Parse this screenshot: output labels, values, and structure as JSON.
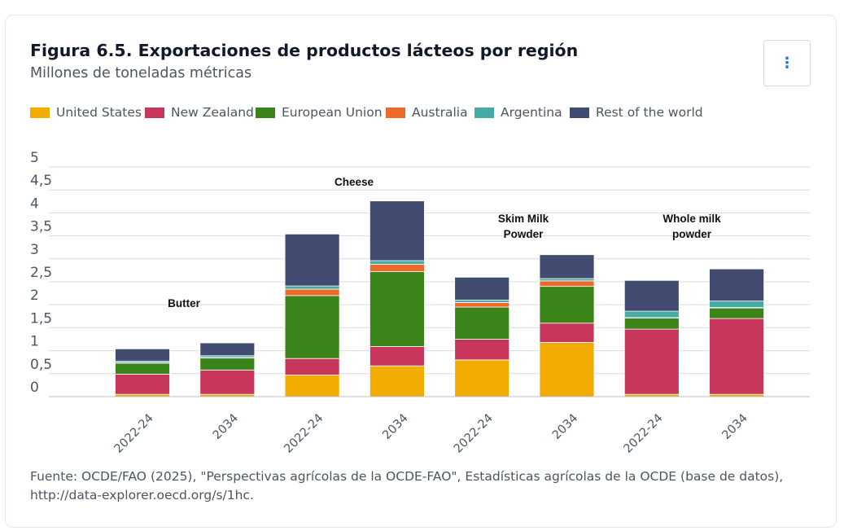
{
  "header": {
    "title": "Figura 6.5. Exportaciones de productos lácteos por región",
    "subtitle": "Millones de toneladas métricas",
    "menu_icon": "vertical-ellipsis-icon"
  },
  "legend": [
    {
      "name": "United States",
      "color": "#f2ac00"
    },
    {
      "name": "New Zealand",
      "color": "#c8365c"
    },
    {
      "name": "European Union",
      "color": "#3a8419"
    },
    {
      "name": "Australia",
      "color": "#ee6a28"
    },
    {
      "name": "Argentina",
      "color": "#44aba5"
    },
    {
      "name": "Rest of the world",
      "color": "#424b70"
    }
  ],
  "chart_data": {
    "type": "bar",
    "stacked": true,
    "y_tick_labels": [
      "0",
      "0,5",
      "1",
      "1,5",
      "2",
      "2,5",
      "3",
      "3,5",
      "4",
      "4,5",
      "5"
    ],
    "ylim": [
      0,
      5
    ],
    "grid": true,
    "legend_position": "top",
    "group_labels": [
      "Butter",
      "Cheese",
      "Skim Milk Powder",
      "Whole milk powder"
    ],
    "categories": [
      "2022-24",
      "2034",
      "2022-24",
      "2034",
      "2022-24",
      "2034",
      "2022-24",
      "2034"
    ],
    "series": [
      {
        "name": "United States",
        "color": "#f2ac00",
        "values": [
          0.05,
          0.05,
          0.47,
          0.67,
          0.8,
          1.18,
          0.05,
          0.05
        ]
      },
      {
        "name": "New Zealand",
        "color": "#c8365c",
        "values": [
          0.44,
          0.53,
          0.36,
          0.42,
          0.45,
          0.42,
          1.42,
          1.65
        ]
      },
      {
        "name": "European Union",
        "color": "#3a8419",
        "values": [
          0.24,
          0.26,
          1.37,
          1.63,
          0.7,
          0.8,
          0.24,
          0.23
        ]
      },
      {
        "name": "Australia",
        "color": "#ee6a28",
        "values": [
          0.01,
          0.01,
          0.14,
          0.16,
          0.1,
          0.12,
          0.01,
          0.01
        ]
      },
      {
        "name": "Argentina",
        "color": "#44aba5",
        "values": [
          0.03,
          0.04,
          0.07,
          0.08,
          0.05,
          0.05,
          0.14,
          0.14
        ]
      },
      {
        "name": "Rest of the world",
        "color": "#424b70",
        "values": [
          0.27,
          0.28,
          1.13,
          1.3,
          0.5,
          0.52,
          0.67,
          0.7
        ]
      }
    ]
  },
  "source_text": "Fuente: OCDE/FAO (2025), \"Perspectivas agrícolas de la OCDE-FAO\", Estadísticas agrícolas de la OCDE (base de datos), http://data-explorer.oecd.org/s/1hc."
}
